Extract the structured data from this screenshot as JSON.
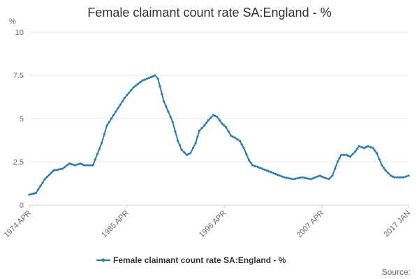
{
  "chart_data": {
    "type": "line",
    "title": "Female claimant count rate SA:England - %",
    "y_unit": "%",
    "ylim": [
      0,
      10
    ],
    "y_ticks": [
      0,
      2.5,
      5,
      7.5,
      10
    ],
    "y_tick_labels": [
      "0",
      "2.5",
      "5",
      "7.5",
      "10"
    ],
    "x_range": [
      "1974-04",
      "2017-01"
    ],
    "x_tick_labels": [
      "1974 APR",
      "1985 APR",
      "1996 APR",
      "2007 APR",
      "2017 JAN"
    ],
    "x_tick_dates": [
      "1974-04",
      "1985-04",
      "1996-04",
      "2007-04",
      "2017-01"
    ],
    "grid": true,
    "legend_position": "bottom",
    "color": "#2a7cb3",
    "series": [
      {
        "name": "Female claimant count rate SA:England - %",
        "points": [
          [
            "1974-04",
            0.6
          ],
          [
            "1975-01",
            0.7
          ],
          [
            "1976-01",
            1.5
          ],
          [
            "1977-01",
            2.0
          ],
          [
            "1978-01",
            2.1
          ],
          [
            "1978-10",
            2.4
          ],
          [
            "1979-06",
            2.3
          ],
          [
            "1980-01",
            2.4
          ],
          [
            "1980-06",
            2.3
          ],
          [
            "1981-06",
            2.3
          ],
          [
            "1982-06",
            3.6
          ],
          [
            "1983-01",
            4.6
          ],
          [
            "1984-01",
            5.4
          ],
          [
            "1985-01",
            6.2
          ],
          [
            "1986-01",
            6.8
          ],
          [
            "1987-01",
            7.2
          ],
          [
            "1988-01",
            7.4
          ],
          [
            "1988-06",
            7.5
          ],
          [
            "1988-10",
            7.3
          ],
          [
            "1989-06",
            6.0
          ],
          [
            "1990-06",
            4.8
          ],
          [
            "1991-01",
            3.7
          ],
          [
            "1991-06",
            3.2
          ],
          [
            "1992-01",
            2.9
          ],
          [
            "1992-06",
            3.0
          ],
          [
            "1993-01",
            3.6
          ],
          [
            "1993-06",
            4.3
          ],
          [
            "1994-01",
            4.6
          ],
          [
            "1994-06",
            4.9
          ],
          [
            "1995-01",
            5.2
          ],
          [
            "1995-06",
            5.1
          ],
          [
            "1996-01",
            4.7
          ],
          [
            "1996-06",
            4.5
          ],
          [
            "1997-01",
            4.0
          ],
          [
            "1997-06",
            3.9
          ],
          [
            "1998-01",
            3.7
          ],
          [
            "1998-06",
            3.3
          ],
          [
            "1999-01",
            2.6
          ],
          [
            "1999-06",
            2.3
          ],
          [
            "2000-01",
            2.2
          ],
          [
            "2001-01",
            2.0
          ],
          [
            "2002-01",
            1.8
          ],
          [
            "2003-01",
            1.6
          ],
          [
            "2004-01",
            1.5
          ],
          [
            "2005-01",
            1.6
          ],
          [
            "2006-01",
            1.5
          ],
          [
            "2007-01",
            1.7
          ],
          [
            "2007-06",
            1.6
          ],
          [
            "2008-01",
            1.5
          ],
          [
            "2008-06",
            1.7
          ],
          [
            "2009-01",
            2.5
          ],
          [
            "2009-06",
            2.9
          ],
          [
            "2010-01",
            2.9
          ],
          [
            "2010-06",
            2.8
          ],
          [
            "2011-01",
            3.1
          ],
          [
            "2011-06",
            3.4
          ],
          [
            "2012-01",
            3.3
          ],
          [
            "2012-06",
            3.4
          ],
          [
            "2013-01",
            3.3
          ],
          [
            "2013-06",
            3.0
          ],
          [
            "2014-01",
            2.3
          ],
          [
            "2014-06",
            2.0
          ],
          [
            "2015-01",
            1.7
          ],
          [
            "2015-06",
            1.6
          ],
          [
            "2016-01",
            1.6
          ],
          [
            "2016-06",
            1.6
          ],
          [
            "2017-01",
            1.7
          ]
        ]
      }
    ]
  },
  "footer": {
    "source_label": "Source:"
  }
}
